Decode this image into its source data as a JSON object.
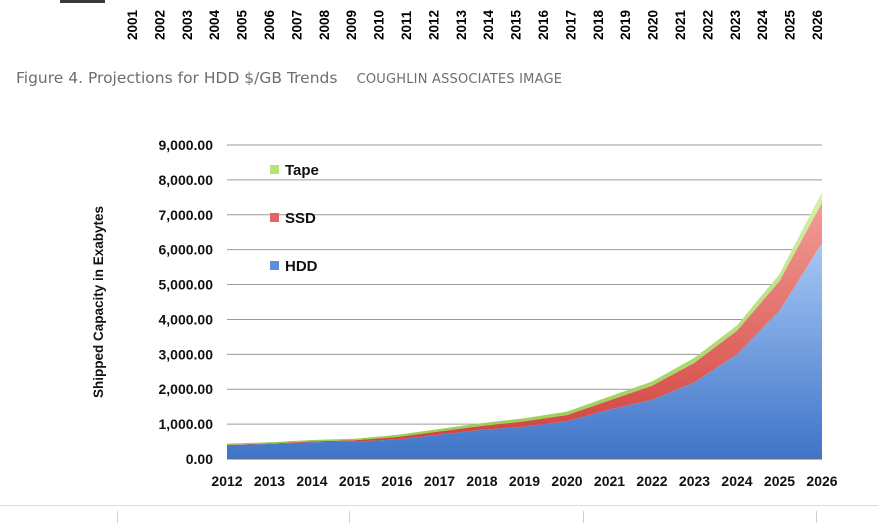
{
  "top_axis": {
    "years": [
      "2001",
      "2002",
      "2003",
      "2004",
      "2005",
      "2006",
      "2007",
      "2008",
      "2009",
      "2010",
      "2011",
      "2012",
      "2013",
      "2014",
      "2015",
      "2016",
      "2017",
      "2018",
      "2019",
      "2020",
      "2021",
      "2022",
      "2023",
      "2024",
      "2025",
      "2026"
    ]
  },
  "caption": {
    "figure": "Figure 4. Projections for HDD $/GB Trends",
    "credit": "COUGHLIN ASSOCIATES IMAGE"
  },
  "chart_data": {
    "type": "area",
    "stacked": true,
    "title": "",
    "xlabel": "",
    "ylabel": "Shipped Capacity in Exabytes",
    "categories": [
      "2012",
      "2013",
      "2014",
      "2015",
      "2016",
      "2017",
      "2018",
      "2019",
      "2020",
      "2021",
      "2022",
      "2023",
      "2024",
      "2025",
      "2026"
    ],
    "ylim": [
      0,
      9000
    ],
    "yticks": [
      "0.00",
      "1,000.00",
      "2,000.00",
      "3,000.00",
      "4,000.00",
      "5,000.00",
      "6,000.00",
      "7,000.00",
      "8,000.00",
      "9,000.00"
    ],
    "grid": true,
    "legend_position": "top-left",
    "series": [
      {
        "name": "HDD",
        "color": "#5b8fd8",
        "values": [
          400,
          430,
          480,
          500,
          560,
          700,
          840,
          930,
          1080,
          1420,
          1700,
          2200,
          3000,
          4250,
          6200
        ]
      },
      {
        "name": "SSD",
        "color": "#e06666",
        "values": [
          10,
          15,
          25,
          35,
          70,
          90,
          110,
          150,
          180,
          260,
          400,
          560,
          680,
          850,
          1150
        ]
      },
      {
        "name": "Tape",
        "color": "#b8e27a",
        "values": [
          30,
          35,
          40,
          45,
          60,
          70,
          80,
          90,
          100,
          110,
          120,
          140,
          150,
          200,
          300
        ]
      }
    ]
  }
}
